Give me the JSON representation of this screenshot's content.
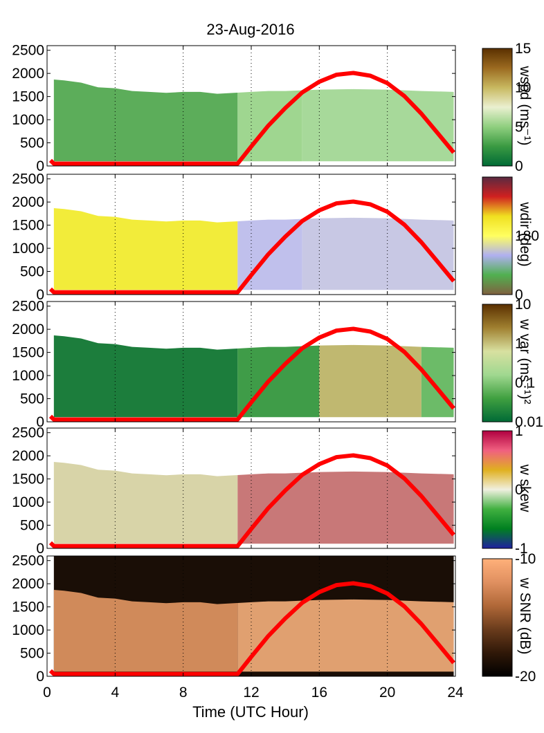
{
  "title": "23-Aug-2016",
  "chart_data": {
    "type": "heatmap",
    "x": {
      "label": "Time (UTC Hour)",
      "range": [
        0,
        24
      ],
      "ticks": [
        0,
        4,
        8,
        12,
        16,
        20,
        24
      ],
      "tick_labels": [
        "0",
        "4",
        "8",
        "12",
        "16",
        "20",
        "24"
      ]
    },
    "y": {
      "range": [
        0,
        2600
      ],
      "ticks": [
        0,
        500,
        1000,
        1500,
        2000,
        2500
      ],
      "tick_labels": [
        "0",
        "500",
        "1000",
        "1500",
        "2000",
        "2500"
      ]
    },
    "grid": "vertical dotted lines at x ticks",
    "overlay_curve": {
      "color": "#ff0000",
      "points": [
        [
          0.2,
          120
        ],
        [
          0.4,
          50
        ],
        [
          11.2,
          50
        ],
        [
          12,
          420
        ],
        [
          13,
          870
        ],
        [
          14,
          1250
        ],
        [
          15,
          1590
        ],
        [
          16,
          1820
        ],
        [
          17,
          1970
        ],
        [
          18,
          2010
        ],
        [
          19,
          1950
        ],
        [
          20,
          1790
        ],
        [
          21,
          1510
        ],
        [
          22,
          1130
        ],
        [
          23,
          690
        ],
        [
          23.9,
          290
        ]
      ]
    },
    "panels": [
      {
        "id": "wspd",
        "colorbar_label": "wspd (ms⁻¹)",
        "colorbar_ticks": [
          "15",
          "10",
          "5",
          "0"
        ],
        "colorbar_colors": [
          "#5a3000",
          "#9b6a20",
          "#c8b860",
          "#eaf0d0",
          "#8fcf7f",
          "#3a9a42",
          "#006a36"
        ],
        "layer_top": [
          [
            0,
            1880
          ],
          [
            1,
            1850
          ],
          [
            2,
            1800
          ],
          [
            3,
            1700
          ],
          [
            4,
            1680
          ],
          [
            5,
            1620
          ],
          [
            6,
            1600
          ],
          [
            7,
            1580
          ],
          [
            8,
            1600
          ],
          [
            9,
            1600
          ],
          [
            10,
            1560
          ],
          [
            11,
            1580
          ],
          [
            12,
            1600
          ],
          [
            13,
            1620
          ],
          [
            14,
            1620
          ],
          [
            16,
            1650
          ],
          [
            18,
            1660
          ],
          [
            20,
            1650
          ],
          [
            22,
            1620
          ],
          [
            24,
            1600
          ]
        ],
        "regions": [
          {
            "x0": 0.4,
            "x1": 11.2,
            "color": "#5cad5a"
          },
          {
            "x0": 11.2,
            "x1": 15.0,
            "color": "#9fd690"
          },
          {
            "x0": 15.0,
            "x1": 23.9,
            "color": "#a7d99a"
          }
        ]
      },
      {
        "id": "wdir",
        "colorbar_label": "wdir (deg)",
        "colorbar_ticks": [
          "",
          "180",
          "0"
        ],
        "colorbar_colors": [
          "#5a2a40",
          "#d02020",
          "#f0e020",
          "#ffff60",
          "#b0b0f0",
          "#50b050",
          "#806040"
        ],
        "layer_top": [
          [
            0,
            1880
          ],
          [
            1,
            1850
          ],
          [
            2,
            1800
          ],
          [
            3,
            1700
          ],
          [
            4,
            1680
          ],
          [
            5,
            1620
          ],
          [
            6,
            1600
          ],
          [
            7,
            1580
          ],
          [
            8,
            1600
          ],
          [
            9,
            1600
          ],
          [
            10,
            1560
          ],
          [
            11,
            1580
          ],
          [
            12,
            1600
          ],
          [
            13,
            1620
          ],
          [
            14,
            1620
          ],
          [
            16,
            1650
          ],
          [
            18,
            1660
          ],
          [
            20,
            1650
          ],
          [
            22,
            1620
          ],
          [
            24,
            1600
          ]
        ],
        "regions": [
          {
            "x0": 0.4,
            "x1": 11.2,
            "color": "#f2ec3a"
          },
          {
            "x0": 11.2,
            "x1": 15.0,
            "color": "#c0c0ec"
          },
          {
            "x0": 15.0,
            "x1": 23.9,
            "color": "#c8c8e4"
          }
        ]
      },
      {
        "id": "wvar",
        "colorbar_label": "w var (ms⁻¹)²",
        "colorbar_ticks": [
          "10",
          "1",
          "0.1",
          "0.01"
        ],
        "colorbar_colors": [
          "#5a3000",
          "#a08030",
          "#d8e0a0",
          "#a0d890",
          "#40a040",
          "#006a36"
        ],
        "layer_top": [
          [
            0,
            1880
          ],
          [
            1,
            1850
          ],
          [
            2,
            1800
          ],
          [
            3,
            1700
          ],
          [
            4,
            1680
          ],
          [
            5,
            1620
          ],
          [
            6,
            1600
          ],
          [
            7,
            1580
          ],
          [
            8,
            1600
          ],
          [
            9,
            1600
          ],
          [
            10,
            1560
          ],
          [
            11,
            1580
          ],
          [
            12,
            1600
          ],
          [
            13,
            1620
          ],
          [
            14,
            1620
          ],
          [
            16,
            1650
          ],
          [
            18,
            1660
          ],
          [
            20,
            1650
          ],
          [
            22,
            1620
          ],
          [
            24,
            1600
          ]
        ],
        "regions": [
          {
            "x0": 0.4,
            "x1": 11.2,
            "color": "#1c7d3c"
          },
          {
            "x0": 11.2,
            "x1": 16.0,
            "color": "#3f9c48"
          },
          {
            "x0": 16.0,
            "x1": 22.0,
            "color": "#c0b870"
          },
          {
            "x0": 22.0,
            "x1": 23.9,
            "color": "#6cbb68"
          }
        ]
      },
      {
        "id": "wskew",
        "colorbar_label": "w skew",
        "colorbar_ticks": [
          "1",
          "0",
          "-1"
        ],
        "colorbar_colors": [
          "#b00040",
          "#f06080",
          "#e0b020",
          "#f0f0e0",
          "#40b040",
          "#008020",
          "#2020a0"
        ],
        "layer_top": [
          [
            0,
            1880
          ],
          [
            1,
            1850
          ],
          [
            2,
            1800
          ],
          [
            3,
            1700
          ],
          [
            4,
            1680
          ],
          [
            5,
            1620
          ],
          [
            6,
            1600
          ],
          [
            7,
            1580
          ],
          [
            8,
            1600
          ],
          [
            9,
            1600
          ],
          [
            10,
            1560
          ],
          [
            11,
            1580
          ],
          [
            12,
            1600
          ],
          [
            13,
            1620
          ],
          [
            14,
            1620
          ],
          [
            16,
            1650
          ],
          [
            18,
            1660
          ],
          [
            20,
            1650
          ],
          [
            22,
            1620
          ],
          [
            24,
            1600
          ]
        ],
        "regions": [
          {
            "x0": 0.4,
            "x1": 11.2,
            "color": "#d8d4a8"
          },
          {
            "x0": 11.2,
            "x1": 23.9,
            "color": "#c87878"
          }
        ]
      },
      {
        "id": "snr",
        "colorbar_label": "w SNR (dB)",
        "colorbar_ticks": [
          "-10",
          "-20"
        ],
        "colorbar_colors": [
          "#ffb07a",
          "#e09060",
          "#b06838",
          "#6a3c1c",
          "#301808",
          "#000000"
        ],
        "layer_top": [
          [
            0,
            1880
          ],
          [
            1,
            1850
          ],
          [
            2,
            1800
          ],
          [
            3,
            1700
          ],
          [
            4,
            1680
          ],
          [
            5,
            1620
          ],
          [
            6,
            1600
          ],
          [
            7,
            1580
          ],
          [
            8,
            1600
          ],
          [
            9,
            1600
          ],
          [
            10,
            1560
          ],
          [
            11,
            1580
          ],
          [
            12,
            1600
          ],
          [
            13,
            1620
          ],
          [
            14,
            1620
          ],
          [
            16,
            1650
          ],
          [
            18,
            1660
          ],
          [
            20,
            1650
          ],
          [
            22,
            1620
          ],
          [
            24,
            1600
          ]
        ],
        "regions": [
          {
            "x0": 0.4,
            "x1": 11.2,
            "color": "#d08a5a"
          },
          {
            "x0": 11.2,
            "x1": 23.9,
            "color": "#e0a070"
          }
        ],
        "upper_fill": "#1a0e06"
      }
    ]
  }
}
